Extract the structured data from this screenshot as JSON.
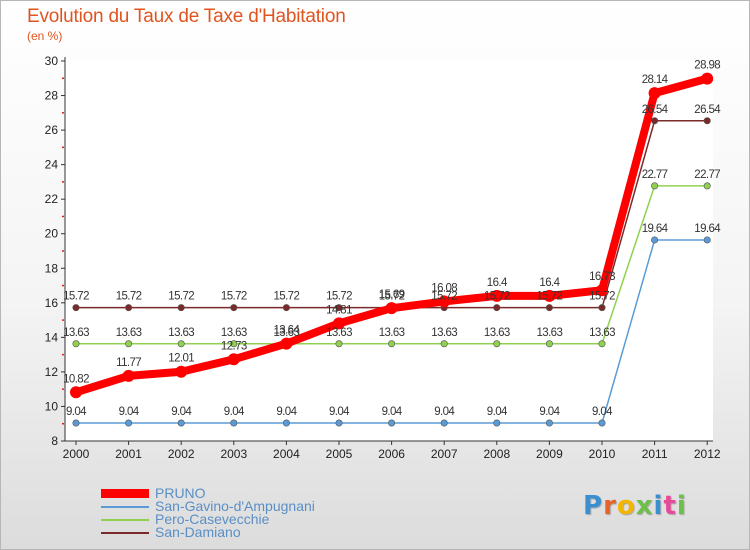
{
  "header": {
    "title": "Evolution du Taux de Taxe d'Habitation",
    "subtitle": "(en %)"
  },
  "logo": {
    "text": "Proxiti",
    "colors": [
      "#3a8fd0",
      "#e8632a",
      "#f2b600",
      "#6cc04a",
      "#3a8fd0",
      "#e84a9a",
      "#6cc04a"
    ]
  },
  "chart_data": {
    "type": "line",
    "title": "Evolution du Taux de Taxe d'Habitation",
    "subtitle": "(en %)",
    "xlabel": "",
    "ylabel": "",
    "ylim": [
      8,
      30
    ],
    "yticks": [
      8,
      10,
      12,
      14,
      16,
      18,
      20,
      22,
      24,
      26,
      28,
      30
    ],
    "x": [
      "2000",
      "2001",
      "2002",
      "2003",
      "2004",
      "2005",
      "2006",
      "2007",
      "2008",
      "2009",
      "2010",
      "2011",
      "2012"
    ],
    "grid": false,
    "legend_position": "bottom-left",
    "series": [
      {
        "name": "PRUNO",
        "color": "#ff0000",
        "values": [
          10.82,
          11.77,
          12.01,
          12.73,
          13.64,
          14.81,
          15.69,
          16.08,
          16.4,
          16.4,
          16.73,
          28.14,
          28.98
        ],
        "labels": [
          "10.82",
          "11.77",
          "12.01",
          "12.73",
          "13.64",
          "14.81",
          "15.69",
          "16.08",
          "16.4",
          "16.4",
          "16.73",
          "28.14",
          "28.98"
        ]
      },
      {
        "name": "San-Gavino-d'Ampugnani",
        "color": "#5b9bd5",
        "values": [
          9.04,
          9.04,
          9.04,
          9.04,
          9.04,
          9.04,
          9.04,
          9.04,
          9.04,
          9.04,
          9.04,
          19.64,
          19.64
        ],
        "labels": [
          "9.04",
          "9.04",
          "9.04",
          "9.04",
          "9.04",
          "9.04",
          "9.04",
          "9.04",
          "9.04",
          "9.04",
          "9.04",
          "19.64",
          "19.64"
        ]
      },
      {
        "name": "Pero-Casevecchie",
        "color": "#8fd14f",
        "values": [
          13.63,
          13.63,
          13.63,
          13.63,
          13.63,
          13.63,
          13.63,
          13.63,
          13.63,
          13.63,
          13.63,
          22.77,
          22.77
        ],
        "labels": [
          "13.63",
          "13.63",
          "13.63",
          "13.63",
          "13.63",
          "13.63",
          "13.63",
          "13.63",
          "13.63",
          "13.63",
          "13.63",
          "22.77",
          "22.77"
        ]
      },
      {
        "name": "San-Damiano",
        "color": "#7a2a2a",
        "values": [
          15.72,
          15.72,
          15.72,
          15.72,
          15.72,
          15.72,
          15.72,
          15.72,
          15.72,
          15.72,
          15.72,
          26.54,
          26.54
        ],
        "labels": [
          "15.72",
          "15.72",
          "15.72",
          "15.72",
          "15.72",
          "15.72",
          "15.72",
          "15.72",
          "15.72",
          "15.72",
          "15.72",
          "26.54",
          "26.54"
        ]
      }
    ]
  }
}
